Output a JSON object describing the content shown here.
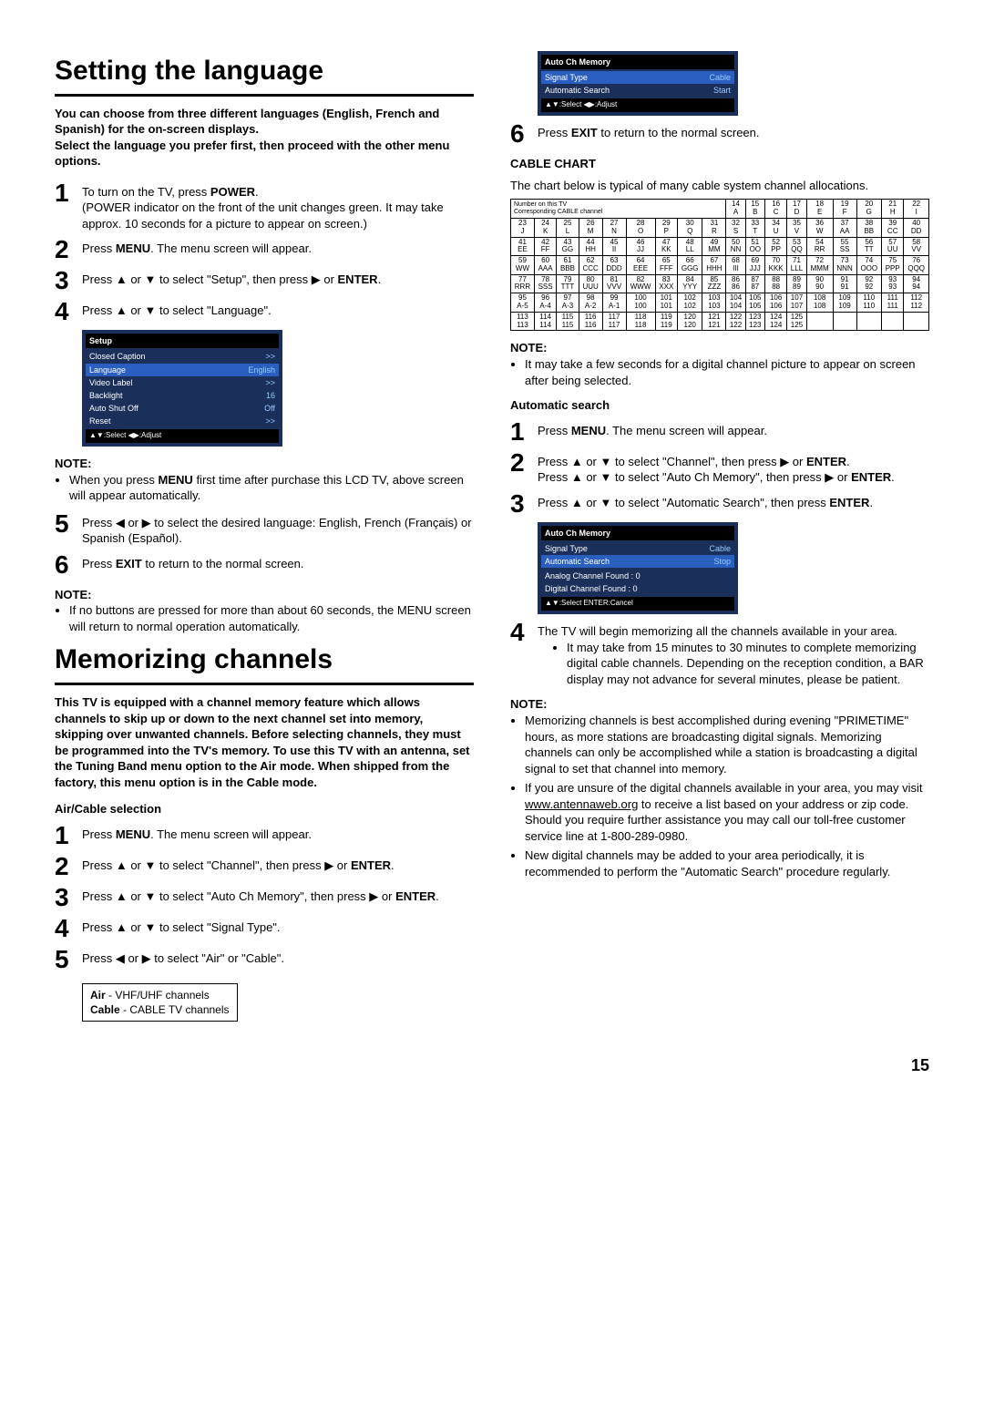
{
  "page_number": "15",
  "left": {
    "h1a": "Setting the language",
    "intro_a": "You can choose from three different languages (English, French and Spanish) for the on-screen displays.\nSelect the language you prefer first, then proceed with the other menu options.",
    "s1": "To turn on the TV, press ",
    "s1b": "POWER",
    "s1c": ".\n(POWER indicator on the front of the unit changes green. It may take approx. 10 seconds for a picture to appear on screen.)",
    "s2a": "Press ",
    "s2b": "MENU",
    "s2c": ". The menu screen will appear.",
    "s3a": "Press ▲ or ▼ to select \"Setup\", then press ▶ or ",
    "s3b": "ENTER",
    "s3c": ".",
    "s4": "Press ▲ or ▼ to select \"Language\".",
    "osd1": {
      "title": "Setup",
      "rows": [
        [
          "Closed Caption",
          ">>"
        ],
        [
          "Language",
          "English"
        ],
        [
          "Video Label",
          ">>"
        ],
        [
          "Backlight",
          "16"
        ],
        [
          "Auto Shut Off",
          "Off"
        ],
        [
          "Reset",
          ">>"
        ]
      ],
      "footer": "▲▼:Select   ◀▶:Adjust"
    },
    "note1_hd": "NOTE:",
    "note1": "When you press MENU first time after purchase this LCD TV, above screen will appear automatically.",
    "s5": "Press ◀ or ▶ to select the desired language: English, French (Français) or Spanish (Español).",
    "s6a": "Press ",
    "s6b": "EXIT",
    "s6c": " to return to the normal screen.",
    "note2_hd": "NOTE:",
    "note2": "If no buttons are pressed for more than about 60 seconds, the MENU screen will return to normal operation automatically.",
    "h1b": "Memorizing channels",
    "intro_b": "This TV is equipped with a channel memory feature which allows channels to skip up or down to the next channel set into memory, skipping over unwanted channels. Before selecting channels, they must be programmed into the TV's memory. To use this TV with an antenna, set the Tuning Band menu option to the Air mode. When shipped from the factory, this menu option is in the Cable mode.",
    "sub_ac": "Air/Cable selection",
    "ac1a": "Press ",
    "ac1b": "MENU",
    "ac1c": ".  The menu screen will appear.",
    "ac2a": "Press ▲ or ▼ to select  \"Channel\", then press ▶ or ",
    "ac2b": "ENTER",
    "ac2c": ".",
    "ac3a": "Press ▲ or ▼ to select \"Auto Ch Memory\", then press ▶ or ",
    "ac3b": "ENTER",
    "ac3c": ".",
    "ac4": "Press ▲ or ▼ to select \"Signal Type\".",
    "ac5": "Press ◀ or ▶ to select \"Air\" or \"Cable\".",
    "sigbox": {
      "l1a": "Air",
      "l1b": " - VHF/UHF channels",
      "l2a": "Cable",
      "l2b": " - CABLE TV channels"
    }
  },
  "right": {
    "osd2": {
      "title": "Auto Ch Memory",
      "rows": [
        [
          "Signal Type",
          "Cable"
        ],
        [
          "Automatic Search",
          "Start"
        ]
      ],
      "footer": "▲▼:Select   ◀▶:Adjust"
    },
    "s6a": "Press ",
    "s6b": "EXIT",
    "s6c": " to return to the normal screen.",
    "cc_hd": "CABLE CHART",
    "cc_txt": "The chart below is typical of many cable system channel allocations.",
    "chart_hdr": "Number on this TV\nCorresponding CABLE channel",
    "chart": [
      [
        [
          "14",
          "A"
        ],
        [
          "15",
          "B"
        ],
        [
          "16",
          "C"
        ],
        [
          "17",
          "D"
        ],
        [
          "18",
          "E"
        ],
        [
          "19",
          "F"
        ],
        [
          "20",
          "G"
        ],
        [
          "21",
          "H"
        ],
        [
          "22",
          "I"
        ]
      ],
      [
        [
          "23",
          "J"
        ],
        [
          "24",
          "K"
        ],
        [
          "25",
          "L"
        ],
        [
          "26",
          "M"
        ],
        [
          "27",
          "N"
        ],
        [
          "28",
          "O"
        ],
        [
          "29",
          "P"
        ],
        [
          "30",
          "Q"
        ],
        [
          "31",
          "R"
        ],
        [
          "32",
          "S"
        ],
        [
          "33",
          "T"
        ],
        [
          "34",
          "U"
        ],
        [
          "35",
          "V"
        ],
        [
          "36",
          "W"
        ],
        [
          "37",
          "AA"
        ],
        [
          "38",
          "BB"
        ],
        [
          "39",
          "CC"
        ],
        [
          "40",
          "DD"
        ]
      ],
      [
        [
          "41",
          "EE"
        ],
        [
          "42",
          "FF"
        ],
        [
          "43",
          "GG"
        ],
        [
          "44",
          "HH"
        ],
        [
          "45",
          "II"
        ],
        [
          "46",
          "JJ"
        ],
        [
          "47",
          "KK"
        ],
        [
          "48",
          "LL"
        ],
        [
          "49",
          "MM"
        ],
        [
          "50",
          "NN"
        ],
        [
          "51",
          "OO"
        ],
        [
          "52",
          "PP"
        ],
        [
          "53",
          "QQ"
        ],
        [
          "54",
          "RR"
        ],
        [
          "55",
          "SS"
        ],
        [
          "56",
          "TT"
        ],
        [
          "57",
          "UU"
        ],
        [
          "58",
          "VV"
        ]
      ],
      [
        [
          "59",
          "WW"
        ],
        [
          "60",
          "AAA"
        ],
        [
          "61",
          "BBB"
        ],
        [
          "62",
          "CCC"
        ],
        [
          "63",
          "DDD"
        ],
        [
          "64",
          "EEE"
        ],
        [
          "65",
          "FFF"
        ],
        [
          "66",
          "GGG"
        ],
        [
          "67",
          "HHH"
        ],
        [
          "68",
          "III"
        ],
        [
          "69",
          "JJJ"
        ],
        [
          "70",
          "KKK"
        ],
        [
          "71",
          "LLL"
        ],
        [
          "72",
          "MMM"
        ],
        [
          "73",
          "NNN"
        ],
        [
          "74",
          "OOO"
        ],
        [
          "75",
          "PPP"
        ],
        [
          "76",
          "QQQ"
        ]
      ],
      [
        [
          "77",
          "RRR"
        ],
        [
          "78",
          "SSS"
        ],
        [
          "79",
          "TTT"
        ],
        [
          "80",
          "UUU"
        ],
        [
          "81",
          "VVV"
        ],
        [
          "82",
          "WWW"
        ],
        [
          "83",
          "XXX"
        ],
        [
          "84",
          "YYY"
        ],
        [
          "85",
          "ZZZ"
        ],
        [
          "86",
          "86"
        ],
        [
          "87",
          "87"
        ],
        [
          "88",
          "88"
        ],
        [
          "89",
          "89"
        ],
        [
          "90",
          "90"
        ],
        [
          "91",
          "91"
        ],
        [
          "92",
          "92"
        ],
        [
          "93",
          "93"
        ],
        [
          "94",
          "94"
        ]
      ],
      [
        [
          "95",
          "A-5"
        ],
        [
          "96",
          "A-4"
        ],
        [
          "97",
          "A-3"
        ],
        [
          "98",
          "A-2"
        ],
        [
          "99",
          "A-1"
        ],
        [
          "100",
          "100"
        ],
        [
          "101",
          "101"
        ],
        [
          "102",
          "102"
        ],
        [
          "103",
          "103"
        ],
        [
          "104",
          "104"
        ],
        [
          "105",
          "105"
        ],
        [
          "106",
          "106"
        ],
        [
          "107",
          "107"
        ],
        [
          "108",
          "108"
        ],
        [
          "109",
          "109"
        ],
        [
          "110",
          "110"
        ],
        [
          "111",
          "111"
        ],
        [
          "112",
          "112"
        ]
      ],
      [
        [
          "113",
          "113"
        ],
        [
          "114",
          "114"
        ],
        [
          "115",
          "115"
        ],
        [
          "116",
          "116"
        ],
        [
          "117",
          "117"
        ],
        [
          "118",
          "118"
        ],
        [
          "119",
          "119"
        ],
        [
          "120",
          "120"
        ],
        [
          "121",
          "121"
        ],
        [
          "122",
          "122"
        ],
        [
          "123",
          "123"
        ],
        [
          "124",
          "124"
        ],
        [
          "125",
          "125"
        ]
      ]
    ],
    "note3_hd": "NOTE:",
    "note3": "It may take a few seconds for a digital channel picture to appear on screen after being selected.",
    "sub_as": "Automatic search",
    "as1a": "Press ",
    "as1b": "MENU",
    "as1c": ". The menu screen will appear.",
    "as2a": "Press ▲ or ▼ to select \"Channel\", then press ▶ or ",
    "as2b": "ENTER",
    "as2c": ".",
    "as2d": "Press ▲ or ▼ to select \"Auto Ch Memory\", then press ▶ or ",
    "as2e": "ENTER",
    "as2f": ".",
    "as3a": "Press ▲ or ▼ to select \"Automatic Search\", then press ",
    "as3b": "ENTER",
    "as3c": ".",
    "osd3": {
      "title": "Auto Ch Memory",
      "rows": [
        [
          "Signal Type",
          "Cable"
        ],
        [
          "Automatic Search",
          "Stop"
        ],
        [
          "",
          ""
        ],
        [
          "Analog Channel Found : 0",
          ""
        ],
        [
          "Digital Channel Found : 0",
          ""
        ]
      ],
      "footer": "▲▼:Select          ENTER:Cancel"
    },
    "as4": "The TV will begin memorizing all the channels available in your area.",
    "as4b": "It may take from 15 minutes to 30 minutes to complete memorizing digital cable channels. Depending on the reception condition, a BAR display may not advance for several minutes, please be patient.",
    "note4_hd": "NOTE:",
    "note4a": "Memorizing channels is best accomplished during evening \"PRIMETIME\" hours, as more stations are broadcasting digital signals. Memorizing channels can only be accomplished while a station is broadcasting a digital signal to set that channel into memory.",
    "note4b_a": "If you are unsure of the digital channels available in your area, you may visit ",
    "note4b_link": "www.antennaweb.org",
    "note4b_b": " to receive a list based on your address or zip code. Should you require further assistance you may call our toll-free customer service line at 1-800-289-0980.",
    "note4c": "New digital channels may be added to your area periodically, it is recommended to perform the \"Automatic Search\" procedure regularly."
  }
}
